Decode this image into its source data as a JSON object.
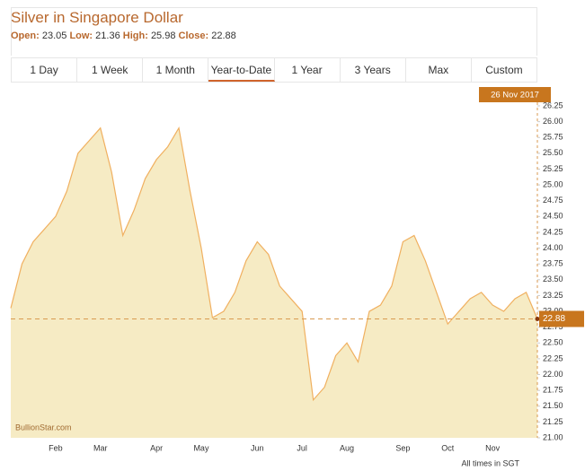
{
  "header": {
    "title": "Silver in Singapore Dollar",
    "stats": [
      {
        "label": "Open:",
        "value": "23.05"
      },
      {
        "label": "Low:",
        "value": "21.36"
      },
      {
        "label": "High:",
        "value": "25.98"
      },
      {
        "label": "Close:",
        "value": "22.88"
      }
    ]
  },
  "tabs": {
    "items": [
      "1 Day",
      "1 Week",
      "1 Month",
      "Year-to-Date",
      "1 Year",
      "3 Years",
      "Max",
      "Custom"
    ],
    "active": "Year-to-Date"
  },
  "chart_data": {
    "type": "area",
    "color": "#f0b060",
    "fill": "#f6ebc4",
    "date_badge": "26 Nov 2017",
    "watermark": "BullionStar.com",
    "footnote": "All times in SGT",
    "categories": [
      null,
      null,
      null,
      null,
      "Feb",
      null,
      null,
      null,
      "Mar",
      null,
      null,
      null,
      null,
      "Apr",
      null,
      null,
      null,
      "May",
      null,
      null,
      null,
      null,
      "Jun",
      null,
      null,
      null,
      "Jul",
      null,
      null,
      null,
      "Aug",
      null,
      null,
      null,
      null,
      "Sep",
      null,
      null,
      null,
      "Oct",
      null,
      null,
      null,
      "Nov",
      null,
      null,
      null,
      null
    ],
    "values": [
      23.05,
      23.75,
      24.1,
      24.3,
      24.5,
      24.9,
      25.5,
      25.7,
      25.9,
      25.2,
      24.2,
      24.6,
      25.1,
      25.4,
      25.6,
      25.9,
      24.9,
      24.0,
      22.9,
      23.0,
      23.3,
      23.8,
      24.1,
      23.9,
      23.4,
      23.2,
      23.0,
      21.6,
      21.8,
      22.3,
      22.5,
      22.2,
      23.0,
      23.1,
      23.4,
      24.1,
      24.2,
      23.8,
      23.3,
      22.8,
      23.0,
      23.2,
      23.3,
      23.1,
      23.0,
      23.2,
      23.3,
      22.88
    ],
    "ylim": [
      21,
      26.25
    ],
    "yticks": [
      {
        "value": 21,
        "label": "21.00"
      },
      21.25,
      {
        "value": 21.5,
        "label": "21.50"
      },
      21.75,
      {
        "value": 22,
        "label": "22.00"
      },
      22.25,
      {
        "value": 22.5,
        "label": "22.50"
      },
      22.75,
      {
        "value": 23,
        "label": "23.00"
      },
      23.25,
      {
        "value": 23.5,
        "label": "23.50"
      },
      23.75,
      {
        "value": 24,
        "label": "24.00"
      },
      24.25,
      {
        "value": 24.5,
        "label": "24.50"
      },
      24.75,
      {
        "value": 25,
        "label": "25.00"
      },
      25.25,
      {
        "value": 25.5,
        "label": "25.50"
      },
      25.75,
      {
        "value": 26,
        "label": "26.00"
      },
      26.25
    ]
  }
}
